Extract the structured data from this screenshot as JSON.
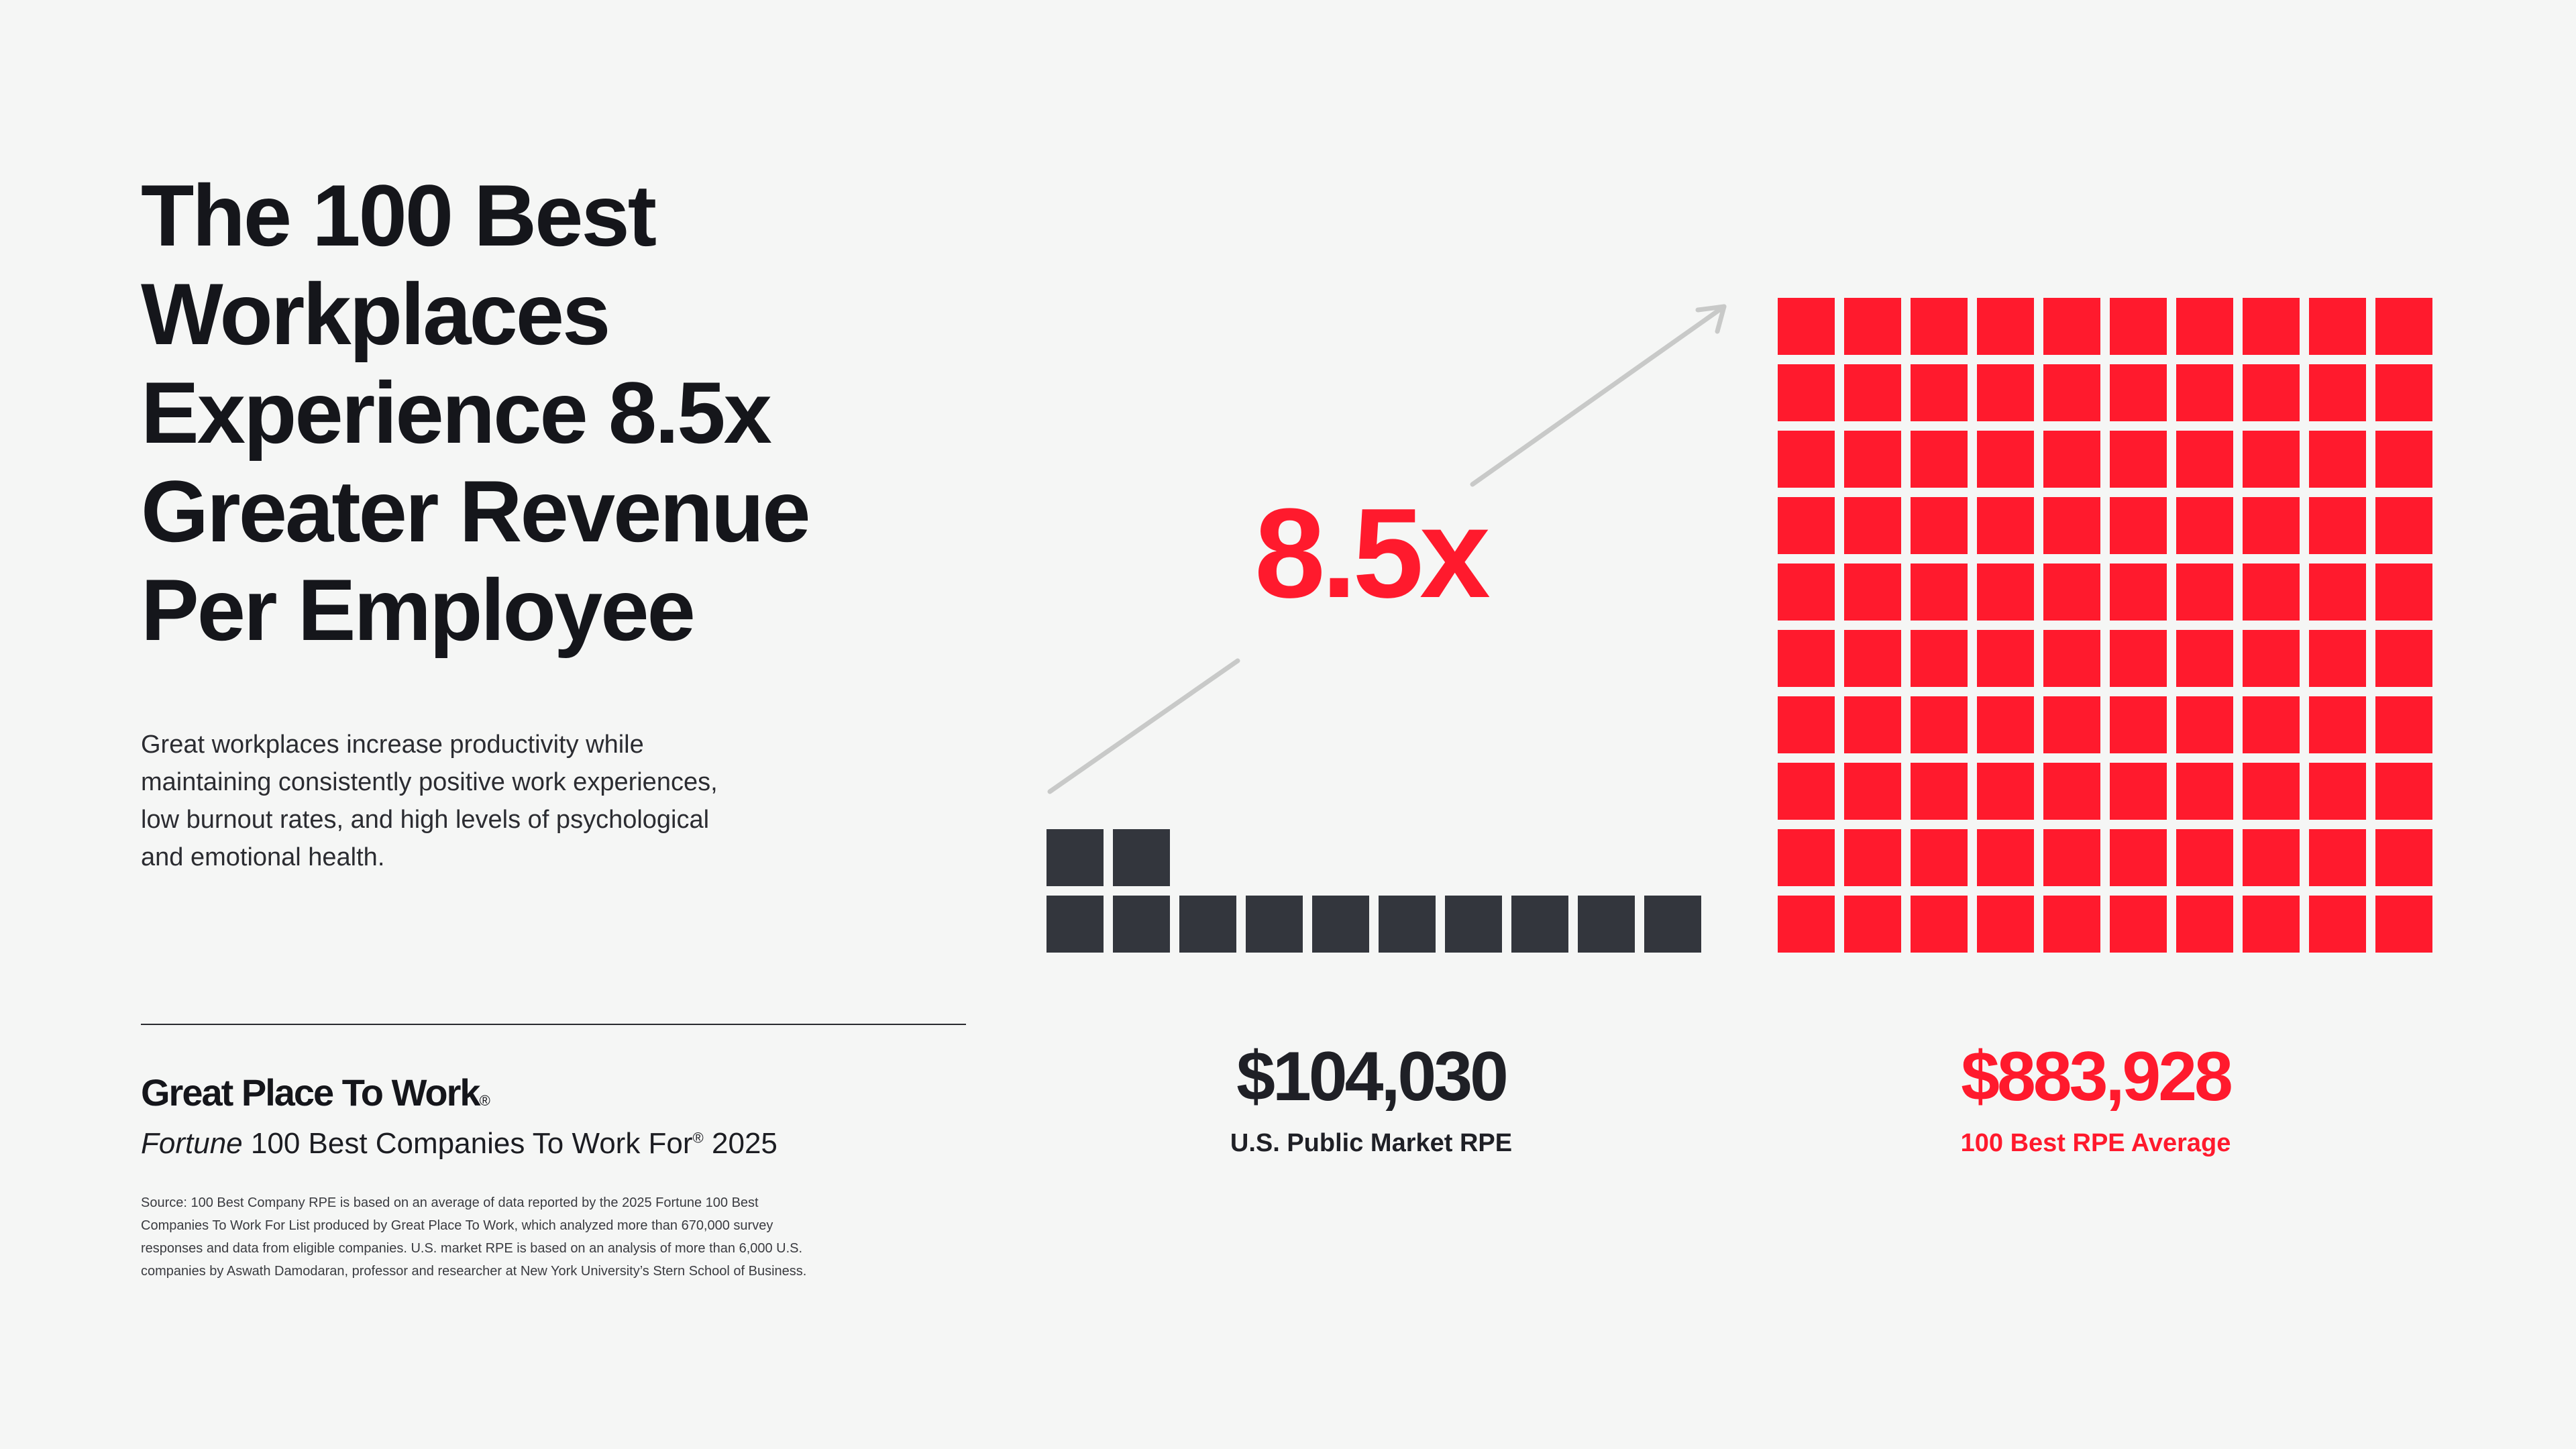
{
  "title_lines": [
    "The 100 Best",
    "Workplaces",
    "Experience 8.5x",
    "Greater Revenue",
    "Per Employee"
  ],
  "intro_lines": [
    "Great workplaces increase productivity while",
    "maintaining consistently positive work experiences,",
    "low burnout rates, and high levels of psychological",
    "and emotional health."
  ],
  "brand": {
    "name": "Great Place To Work",
    "registered_mark": "®",
    "list_magazine": "Fortune",
    "list_name": "100 Best Companies To Work For",
    "list_mark": "®",
    "list_year": "2025"
  },
  "source_lines": [
    "Source: 100 Best Company RPE is based on an average of data reported by the 2025 Fortune 100 Best",
    "Companies To Work For List produced by Great Place To Work, which analyzed more than 670,000 survey",
    "responses and data from eligible companies. U.S. market RPE is based on an analysis of more than 6,000 U.S.",
    "companies by Aswath Damodaran, professor and researcher at New York University’s Stern School of Business."
  ],
  "colors": {
    "accent": "#ff1a2d",
    "dark": "#33363d",
    "arrow": "#c8c9c8",
    "background": "#f5f6f5"
  },
  "chart_data": {
    "type": "bar",
    "encoding": "unit squares",
    "multiplier_label": "8.5x",
    "categories": [
      "U.S. Public Market RPE",
      "100 Best RPE Average"
    ],
    "value_labels": [
      "$104,030",
      "$883,928"
    ],
    "values": [
      104030,
      883928
    ],
    "units_shown": [
      12,
      100
    ],
    "series_colors": [
      "#33363d",
      "#ff1a2d"
    ]
  }
}
